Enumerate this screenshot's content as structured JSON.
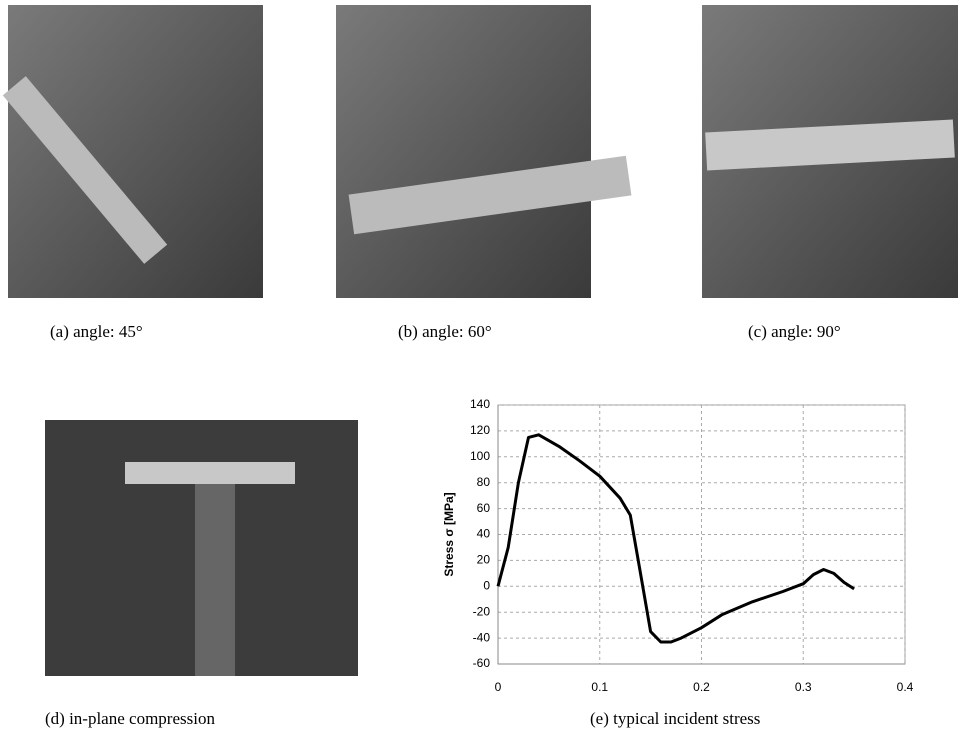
{
  "captions": [
    "(a) angle: 45°",
    "(b) angle: 60°",
    "(c) angle: 90°",
    "(d) in-plane compression",
    "(e) typical incident stress"
  ],
  "chart_data": {
    "type": "line",
    "ylabel": "Stress σ [MPa]",
    "x": [
      0,
      0.01,
      0.02,
      0.03,
      0.04,
      0.06,
      0.08,
      0.1,
      0.12,
      0.13,
      0.14,
      0.15,
      0.16,
      0.17,
      0.18,
      0.2,
      0.22,
      0.25,
      0.28,
      0.3,
      0.31,
      0.32,
      0.33,
      0.34,
      0.35
    ],
    "values": [
      0,
      30,
      80,
      115,
      117,
      108,
      97,
      85,
      68,
      55,
      10,
      -35,
      -43,
      -43,
      -40,
      -32,
      -22,
      -12,
      -4,
      2,
      9,
      13,
      10,
      3,
      -2
    ],
    "color": "#000000",
    "xlim": [
      0,
      0.4
    ],
    "xticks": [
      0,
      0.1,
      0.2,
      0.3,
      0.4
    ],
    "ylim": [
      -60,
      140
    ],
    "yticks": [
      -60,
      -40,
      -20,
      0,
      20,
      40,
      60,
      80,
      100,
      120,
      140
    ],
    "grid": true
  }
}
